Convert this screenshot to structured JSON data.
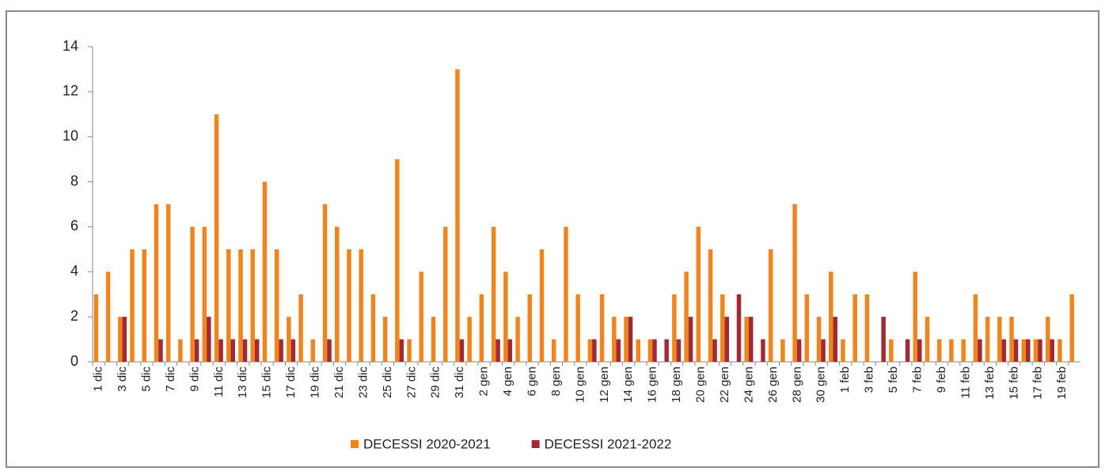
{
  "chart_data": {
    "type": "bar",
    "categories": [
      "1 dic",
      null,
      "3 dic",
      null,
      "5 dic",
      null,
      "7 dic",
      null,
      "9 dic",
      null,
      "11 dic",
      null,
      "13 dic",
      null,
      "15 dic",
      null,
      "17 dic",
      null,
      "19 dic",
      null,
      "21 dic",
      null,
      "23 dic",
      null,
      "25 dic",
      null,
      "27 dic",
      null,
      "29 dic",
      null,
      "31 dic",
      null,
      "2 gen",
      null,
      "4 gen",
      null,
      "6 gen",
      null,
      "8 gen",
      null,
      "10 gen",
      null,
      "12 gen",
      null,
      "14 gen",
      null,
      "16 gen",
      null,
      "18 gen",
      null,
      "20 gen",
      null,
      "22 gen",
      null,
      "24 gen",
      null,
      "26 gen",
      null,
      "28 gen",
      null,
      "30 gen",
      null,
      "1 feb",
      null,
      "3 feb",
      null,
      "5 feb",
      null,
      "7 feb",
      null,
      "9 feb",
      null,
      "11 feb",
      null,
      "13 feb",
      null,
      "15 feb",
      null,
      "17 feb",
      null,
      "19 feb",
      null
    ],
    "series": [
      {
        "name": "DECESSI 2020-2021",
        "color": "#f0851e",
        "values": [
          3,
          4,
          2,
          5,
          5,
          7,
          7,
          1,
          6,
          6,
          11,
          5,
          5,
          5,
          8,
          5,
          2,
          3,
          1,
          7,
          6,
          5,
          5,
          3,
          2,
          9,
          1,
          4,
          2,
          6,
          13,
          2,
          3,
          6,
          4,
          2,
          3,
          5,
          1,
          6,
          3,
          1,
          3,
          2,
          2,
          1,
          1,
          0,
          3,
          4,
          6,
          5,
          3,
          0,
          2,
          0,
          5,
          1,
          7,
          3,
          2,
          4,
          1,
          3,
          3,
          0,
          1,
          0,
          4,
          2,
          1,
          1,
          1,
          3,
          2,
          2,
          2,
          1,
          1,
          2,
          1,
          3
        ]
      },
      {
        "name": "DECESSI 2021-2022",
        "color": "#a02a36",
        "values": [
          0,
          0,
          2,
          0,
          0,
          1,
          0,
          0,
          1,
          2,
          1,
          1,
          1,
          1,
          0,
          1,
          1,
          0,
          0,
          1,
          0,
          0,
          0,
          0,
          0,
          1,
          0,
          0,
          0,
          0,
          1,
          0,
          0,
          1,
          1,
          0,
          0,
          0,
          0,
          0,
          0,
          1,
          0,
          1,
          2,
          0,
          1,
          1,
          1,
          2,
          0,
          1,
          2,
          3,
          2,
          1,
          0,
          0,
          1,
          0,
          1,
          2,
          0,
          0,
          0,
          2,
          0,
          1,
          1,
          0,
          0,
          0,
          0,
          1,
          0,
          1,
          1,
          1,
          1,
          1,
          0,
          0
        ]
      }
    ],
    "ylim": [
      0,
      14
    ],
    "yticks": [
      0,
      2,
      4,
      6,
      8,
      10,
      12,
      14
    ]
  }
}
